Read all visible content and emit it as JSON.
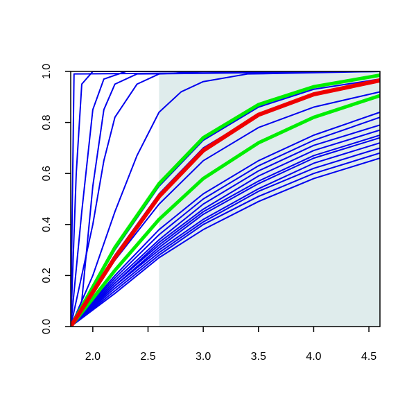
{
  "chart_data": {
    "type": "line",
    "title": "",
    "xlabel": "",
    "ylabel": "",
    "xlim": [
      1.8,
      4.6
    ],
    "ylim": [
      0,
      1
    ],
    "grid": false,
    "x_ticks": [
      "2.0",
      "2.5",
      "3.0",
      "3.5",
      "4.0",
      "4.5"
    ],
    "y_ticks": [
      "0.0",
      "0.2",
      "0.4",
      "0.6",
      "0.8",
      "1.0"
    ],
    "shaded_region": {
      "x_from": 2.6,
      "x_to": 4.6,
      "color": "#dfecec"
    },
    "colors": {
      "blue": "#0000ee",
      "green": "#00ee00",
      "red": "#ee0000"
    },
    "series": [
      {
        "color": "blue",
        "values": [
          [
            1.8,
            0
          ],
          [
            1.83,
            0.99
          ],
          [
            4.6,
            1
          ]
        ]
      },
      {
        "color": "blue",
        "values": [
          [
            1.8,
            0
          ],
          [
            1.85,
            0.6
          ],
          [
            1.9,
            0.95
          ],
          [
            2.0,
            1
          ],
          [
            4.6,
            1
          ]
        ]
      },
      {
        "color": "blue",
        "values": [
          [
            1.8,
            0
          ],
          [
            1.9,
            0.45
          ],
          [
            2.0,
            0.85
          ],
          [
            2.1,
            0.97
          ],
          [
            2.3,
            1
          ],
          [
            4.6,
            1
          ]
        ]
      },
      {
        "color": "blue",
        "values": [
          [
            1.8,
            0
          ],
          [
            1.9,
            0.1
          ],
          [
            2.0,
            0.55
          ],
          [
            2.1,
            0.85
          ],
          [
            2.2,
            0.95
          ],
          [
            2.4,
            0.99
          ],
          [
            4.6,
            1
          ]
        ]
      },
      {
        "color": "blue",
        "values": [
          [
            1.8,
            0
          ],
          [
            2.0,
            0.4
          ],
          [
            2.1,
            0.65
          ],
          [
            2.2,
            0.82
          ],
          [
            2.4,
            0.95
          ],
          [
            2.6,
            0.99
          ],
          [
            3.0,
            1
          ],
          [
            4.6,
            1
          ]
        ]
      },
      {
        "color": "blue",
        "values": [
          [
            1.8,
            0
          ],
          [
            2.0,
            0.2
          ],
          [
            2.2,
            0.45
          ],
          [
            2.4,
            0.67
          ],
          [
            2.6,
            0.84
          ],
          [
            2.8,
            0.92
          ],
          [
            3.0,
            0.96
          ],
          [
            3.4,
            0.99
          ],
          [
            4.6,
            1
          ]
        ]
      },
      {
        "color": "blue",
        "values": [
          [
            1.8,
            0
          ],
          [
            2.2,
            0.3
          ],
          [
            2.6,
            0.55
          ],
          [
            3.0,
            0.73
          ],
          [
            3.5,
            0.86
          ],
          [
            4.0,
            0.93
          ],
          [
            4.6,
            0.97
          ]
        ]
      },
      {
        "color": "blue",
        "values": [
          [
            1.8,
            0
          ],
          [
            2.2,
            0.28
          ],
          [
            2.6,
            0.52
          ],
          [
            3.0,
            0.7
          ],
          [
            3.5,
            0.83
          ],
          [
            4.0,
            0.91
          ],
          [
            4.6,
            0.96
          ]
        ]
      },
      {
        "color": "blue",
        "values": [
          [
            1.8,
            0
          ],
          [
            2.2,
            0.26
          ],
          [
            2.6,
            0.48
          ],
          [
            3.0,
            0.65
          ],
          [
            3.5,
            0.78
          ],
          [
            4.0,
            0.86
          ],
          [
            4.6,
            0.92
          ]
        ]
      },
      {
        "color": "blue",
        "values": [
          [
            1.8,
            0
          ],
          [
            2.2,
            0.2
          ],
          [
            2.6,
            0.38
          ],
          [
            3.0,
            0.52
          ],
          [
            3.5,
            0.65
          ],
          [
            4.0,
            0.75
          ],
          [
            4.6,
            0.84
          ]
        ]
      },
      {
        "color": "blue",
        "values": [
          [
            1.8,
            0
          ],
          [
            2.2,
            0.19
          ],
          [
            2.6,
            0.36
          ],
          [
            3.0,
            0.5
          ],
          [
            3.5,
            0.63
          ],
          [
            4.0,
            0.73
          ],
          [
            4.6,
            0.82
          ]
        ]
      },
      {
        "color": "blue",
        "values": [
          [
            1.8,
            0
          ],
          [
            2.2,
            0.18
          ],
          [
            2.6,
            0.34
          ],
          [
            3.0,
            0.48
          ],
          [
            3.5,
            0.61
          ],
          [
            4.0,
            0.71
          ],
          [
            4.6,
            0.79
          ]
        ]
      },
      {
        "color": "blue",
        "values": [
          [
            1.8,
            0
          ],
          [
            2.2,
            0.17
          ],
          [
            2.6,
            0.33
          ],
          [
            3.0,
            0.46
          ],
          [
            3.5,
            0.59
          ],
          [
            4.0,
            0.69
          ],
          [
            4.6,
            0.77
          ]
        ]
      },
      {
        "color": "blue",
        "values": [
          [
            1.8,
            0
          ],
          [
            2.2,
            0.17
          ],
          [
            2.6,
            0.32
          ],
          [
            3.0,
            0.45
          ],
          [
            3.5,
            0.57
          ],
          [
            4.0,
            0.67
          ],
          [
            4.6,
            0.75
          ]
        ]
      },
      {
        "color": "blue",
        "values": [
          [
            1.8,
            0
          ],
          [
            2.2,
            0.16
          ],
          [
            2.6,
            0.31
          ],
          [
            3.0,
            0.44
          ],
          [
            3.5,
            0.56
          ],
          [
            4.0,
            0.66
          ],
          [
            4.6,
            0.74
          ]
        ]
      },
      {
        "color": "blue",
        "values": [
          [
            1.8,
            0
          ],
          [
            2.2,
            0.16
          ],
          [
            2.6,
            0.3
          ],
          [
            3.0,
            0.42
          ],
          [
            3.5,
            0.54
          ],
          [
            4.0,
            0.64
          ],
          [
            4.6,
            0.72
          ]
        ]
      },
      {
        "color": "blue",
        "values": [
          [
            1.8,
            0
          ],
          [
            2.2,
            0.15
          ],
          [
            2.6,
            0.29
          ],
          [
            3.0,
            0.41
          ],
          [
            3.5,
            0.53
          ],
          [
            4.0,
            0.62
          ],
          [
            4.6,
            0.7
          ]
        ]
      },
      {
        "color": "blue",
        "values": [
          [
            1.8,
            0
          ],
          [
            2.2,
            0.14
          ],
          [
            2.6,
            0.28
          ],
          [
            3.0,
            0.4
          ],
          [
            3.5,
            0.51
          ],
          [
            4.0,
            0.6
          ],
          [
            4.6,
            0.68
          ]
        ]
      },
      {
        "color": "blue",
        "values": [
          [
            1.8,
            0
          ],
          [
            2.2,
            0.13
          ],
          [
            2.6,
            0.27
          ],
          [
            3.0,
            0.38
          ],
          [
            3.5,
            0.49
          ],
          [
            4.0,
            0.58
          ],
          [
            4.6,
            0.66
          ]
        ]
      },
      {
        "color": "green",
        "values": [
          [
            1.8,
            0
          ],
          [
            2.2,
            0.31
          ],
          [
            2.6,
            0.56
          ],
          [
            3.0,
            0.74
          ],
          [
            3.5,
            0.87
          ],
          [
            4.0,
            0.94
          ],
          [
            4.6,
            0.985
          ]
        ]
      },
      {
        "color": "green",
        "values": [
          [
            1.8,
            0
          ],
          [
            2.2,
            0.22
          ],
          [
            2.6,
            0.42
          ],
          [
            3.0,
            0.58
          ],
          [
            3.5,
            0.72
          ],
          [
            4.0,
            0.82
          ],
          [
            4.6,
            0.905
          ]
        ]
      },
      {
        "color": "red",
        "values": [
          [
            1.8,
            0
          ],
          [
            2.2,
            0.27
          ],
          [
            2.6,
            0.51
          ],
          [
            3.0,
            0.69
          ],
          [
            3.5,
            0.83
          ],
          [
            4.0,
            0.91
          ],
          [
            4.6,
            0.965
          ]
        ]
      }
    ]
  }
}
